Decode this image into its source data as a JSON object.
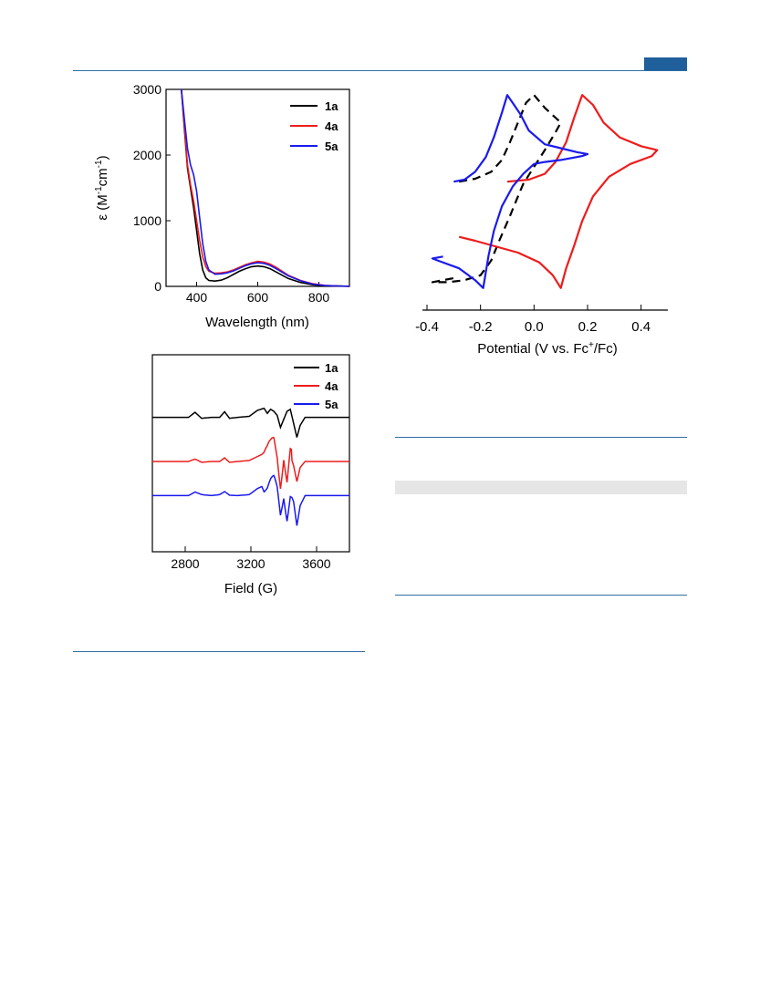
{
  "colors": {
    "rule": "#2f6ea5",
    "tab": "#1f5f9c",
    "black": "#000000",
    "red": "#ee1c1c",
    "blue": "#1a1aee"
  },
  "chart_data": [
    {
      "type": "line",
      "xlabel": "Wavelength (nm)",
      "ylabel_main": "ε (M",
      "ylabel_sup1": "-1",
      "ylabel_mid": "cm",
      "ylabel_sup2": "-1",
      "ylabel_end": ")",
      "xlim": [
        300,
        900
      ],
      "ylim": [
        0,
        3000
      ],
      "xticks": [
        400,
        600,
        800
      ],
      "yticks": [
        0,
        1000,
        2000,
        3000
      ],
      "legend": "top-right",
      "series": [
        {
          "name": "1a",
          "color": "#000000",
          "x": [
            350,
            360,
            370,
            380,
            390,
            400,
            410,
            420,
            430,
            440,
            460,
            480,
            500,
            520,
            540,
            560,
            580,
            600,
            620,
            640,
            660,
            680,
            700,
            740,
            780,
            820,
            860,
            900
          ],
          "y": [
            3000,
            2400,
            1800,
            1500,
            1200,
            850,
            500,
            250,
            130,
            90,
            80,
            95,
            130,
            180,
            230,
            270,
            300,
            310,
            300,
            270,
            220,
            170,
            120,
            60,
            25,
            10,
            5,
            2
          ]
        },
        {
          "name": "4a",
          "color": "#ee1c1c",
          "x": [
            350,
            360,
            370,
            380,
            390,
            400,
            410,
            420,
            430,
            440,
            460,
            480,
            500,
            520,
            540,
            560,
            580,
            600,
            620,
            640,
            660,
            680,
            700,
            740,
            780,
            820,
            860,
            900
          ],
          "y": [
            3000,
            2450,
            1850,
            1550,
            1300,
            1000,
            700,
            450,
            300,
            230,
            200,
            205,
            220,
            250,
            290,
            330,
            360,
            380,
            370,
            340,
            290,
            230,
            170,
            90,
            40,
            15,
            6,
            2
          ]
        },
        {
          "name": "5a",
          "color": "#1a1aee",
          "x": [
            350,
            360,
            370,
            380,
            390,
            400,
            410,
            420,
            430,
            440,
            460,
            480,
            500,
            520,
            540,
            560,
            580,
            600,
            620,
            640,
            660,
            680,
            700,
            740,
            780,
            820,
            860,
            900
          ],
          "y": [
            3000,
            2550,
            2100,
            1850,
            1700,
            1450,
            1050,
            650,
            380,
            250,
            185,
            190,
            205,
            235,
            275,
            315,
            345,
            360,
            350,
            320,
            270,
            215,
            160,
            85,
            35,
            12,
            5,
            2
          ]
        }
      ]
    },
    {
      "type": "line",
      "xlabel": "Potential (V vs. Fc",
      "xlabel_sup": "+",
      "xlabel_end": "/Fc)",
      "xlim": [
        -0.4,
        0.5
      ],
      "xticks": [
        "-0.4",
        "-0.2",
        "0.0",
        "0.2",
        "0.4"
      ],
      "series": [
        {
          "name": "1a",
          "color": "#000000",
          "dash": true,
          "x": [
            -0.28,
            -0.22,
            -0.16,
            -0.12,
            -0.09,
            -0.06,
            -0.03,
            0.0,
            0.04,
            0.08,
            0.1,
            0.08,
            0.04,
            0.0,
            -0.04,
            -0.06,
            -0.09,
            -0.13,
            -0.16,
            -0.2,
            -0.26,
            -0.32,
            -0.38,
            -0.3
          ],
          "y": [
            0.1,
            0.13,
            0.2,
            0.32,
            0.5,
            0.7,
            0.9,
            0.98,
            0.85,
            0.75,
            0.7,
            0.6,
            0.42,
            0.25,
            0.08,
            -0.05,
            -0.25,
            -0.5,
            -0.7,
            -0.85,
            -0.9,
            -0.92,
            -0.92,
            -0.88
          ]
        },
        {
          "name": "4a",
          "color": "#ee1c1c",
          "x": [
            -0.1,
            -0.02,
            0.04,
            0.08,
            0.12,
            0.15,
            0.18,
            0.22,
            0.26,
            0.32,
            0.4,
            0.46,
            0.44,
            0.36,
            0.28,
            0.22,
            0.18,
            0.15,
            0.12,
            0.1,
            0.07,
            0.02,
            -0.06,
            -0.14,
            -0.22,
            -0.28
          ],
          "y": [
            0.1,
            0.12,
            0.18,
            0.3,
            0.5,
            0.75,
            0.98,
            0.88,
            0.7,
            0.55,
            0.46,
            0.42,
            0.36,
            0.28,
            0.15,
            -0.05,
            -0.3,
            -0.55,
            -0.78,
            -0.98,
            -0.85,
            -0.72,
            -0.62,
            -0.56,
            -0.5,
            -0.46
          ]
        },
        {
          "name": "5a",
          "color": "#1a1aee",
          "x": [
            -0.3,
            -0.26,
            -0.22,
            -0.18,
            -0.15,
            -0.12,
            -0.1,
            -0.08,
            -0.05,
            -0.02,
            0.04,
            0.1,
            0.16,
            0.2,
            0.18,
            0.1,
            0.04,
            0.0,
            -0.04,
            -0.08,
            -0.12,
            -0.15,
            -0.17,
            -0.19,
            -0.22,
            -0.28,
            -0.36,
            -0.38,
            -0.34
          ],
          "y": [
            0.1,
            0.12,
            0.2,
            0.35,
            0.55,
            0.8,
            0.98,
            0.9,
            0.78,
            0.62,
            0.48,
            0.44,
            0.4,
            0.38,
            0.36,
            0.32,
            0.3,
            0.28,
            0.18,
            0.05,
            -0.15,
            -0.4,
            -0.65,
            -0.98,
            -0.9,
            -0.78,
            -0.7,
            -0.68,
            -0.66
          ]
        }
      ]
    },
    {
      "type": "line",
      "xlabel": "Field (G)",
      "xlim": [
        2600,
        3800
      ],
      "xticks": [
        2800,
        3200,
        3600
      ],
      "legend": "top-right",
      "series": [
        {
          "name": "1a",
          "color": "#000000",
          "offset": 2.2,
          "noise": 0.0,
          "x": [
            2600,
            2820,
            2860,
            2900,
            2960,
            3010,
            3040,
            3070,
            3120,
            3190,
            3240,
            3280,
            3300,
            3320,
            3340,
            3360,
            3380,
            3400,
            3420,
            3440,
            3460,
            3480,
            3500,
            3530,
            3800
          ],
          "y": [
            0,
            0,
            0.25,
            -0.05,
            0,
            0,
            0.28,
            -0.05,
            0,
            0.05,
            0.35,
            0.45,
            0.2,
            0.4,
            0.3,
            0.1,
            -0.5,
            -0.1,
            0.3,
            0.4,
            -0.3,
            -1.0,
            -0.4,
            0,
            0
          ]
        },
        {
          "name": "4a",
          "color": "#ee1c1c",
          "offset": 0,
          "noise": 0.6,
          "x": [
            2600,
            2820,
            2860,
            2900,
            2960,
            3010,
            3040,
            3070,
            3120,
            3190,
            3240,
            3280,
            3300,
            3320,
            3340,
            3360,
            3380,
            3400,
            3420,
            3440,
            3460,
            3480,
            3500,
            3530,
            3800
          ],
          "y": [
            0,
            0,
            0.12,
            -0.04,
            0,
            0,
            0.18,
            -0.04,
            0,
            0.05,
            0.25,
            0.4,
            0.3,
            0.5,
            0.9,
            0.4,
            -0.8,
            0.6,
            -0.9,
            0.3,
            -0.2,
            -1.0,
            -0.3,
            0,
            0
          ]
        },
        {
          "name": "5a",
          "color": "#1a1aee",
          "offset": -1.7,
          "noise": 0.4,
          "x": [
            2600,
            2820,
            2860,
            2900,
            2960,
            3010,
            3040,
            3070,
            3120,
            3190,
            3240,
            3280,
            3300,
            3320,
            3340,
            3360,
            3380,
            3400,
            3420,
            3440,
            3460,
            3480,
            3500,
            3530,
            3800
          ],
          "y": [
            0,
            0,
            0.18,
            0.05,
            0,
            0.05,
            0.2,
            0.02,
            0,
            0.05,
            0.35,
            0.5,
            0.4,
            0.55,
            0.6,
            0.2,
            -0.9,
            0.2,
            -0.9,
            0.1,
            -0.3,
            -1.5,
            -0.5,
            0,
            0
          ]
        }
      ]
    }
  ]
}
